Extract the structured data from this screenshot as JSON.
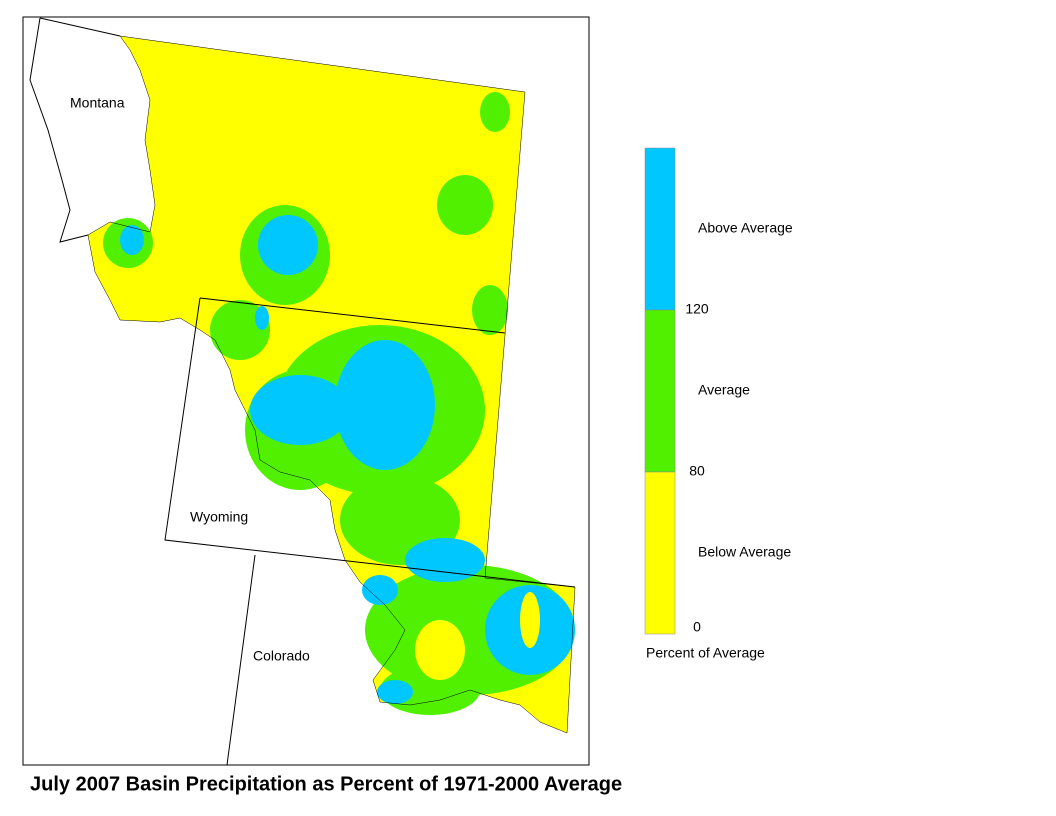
{
  "title": "July 2007 Basin Precipitation as Percent of 1971-2000 Average",
  "states": [
    {
      "label": "Montana"
    },
    {
      "label": "Wyoming"
    },
    {
      "label": "Colorado"
    }
  ],
  "legend": {
    "classes": [
      {
        "label": "Above Average",
        "color": "#00c8ff"
      },
      {
        "label": "Average",
        "color": "#50f000"
      },
      {
        "label": "Below Average",
        "color": "#ffff00"
      }
    ],
    "ticks": [
      120,
      80,
      0
    ],
    "caption": "Percent of Average"
  }
}
